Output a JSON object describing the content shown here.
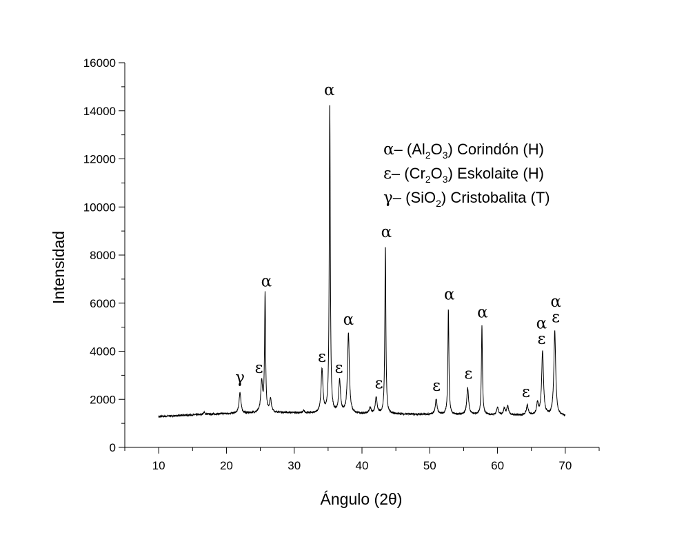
{
  "chart_data": {
    "type": "line",
    "xlabel": "Ángulo (2θ)",
    "ylabel": "Intensidad",
    "xlim": [
      5,
      75
    ],
    "ylim": [
      0,
      16000
    ],
    "xticks": [
      10,
      20,
      30,
      40,
      50,
      60,
      70
    ],
    "yticks": [
      0,
      2000,
      4000,
      6000,
      8000,
      10000,
      12000,
      14000,
      16000
    ],
    "xtick_labels": [
      "10",
      "20",
      "30",
      "40",
      "50",
      "60",
      "70"
    ],
    "ytick_labels": [
      "0",
      "2000",
      "4000",
      "6000",
      "8000",
      "10000",
      "12000",
      "14000",
      "16000"
    ],
    "grid": false,
    "legend_placement": "top-right",
    "line_color": "#000000",
    "x_range": [
      10,
      70
    ],
    "baseline": [
      [
        10,
        1280
      ],
      [
        15,
        1350
      ],
      [
        20,
        1400
      ],
      [
        28,
        1450
      ],
      [
        35,
        1400
      ],
      [
        45,
        1380
      ],
      [
        55,
        1360
      ],
      [
        65,
        1330
      ],
      [
        70,
        1300
      ]
    ],
    "peaks": [
      {
        "x": 16.7,
        "y": 1450
      },
      {
        "x": 22.0,
        "y": 2290
      },
      {
        "x": 25.2,
        "y": 2700
      },
      {
        "x": 25.7,
        "y": 6340
      },
      {
        "x": 26.5,
        "y": 1980
      },
      {
        "x": 31.4,
        "y": 1500
      },
      {
        "x": 34.1,
        "y": 3210
      },
      {
        "x": 35.25,
        "y": 14300
      },
      {
        "x": 36.7,
        "y": 2750
      },
      {
        "x": 38.0,
        "y": 4730
      },
      {
        "x": 41.2,
        "y": 1650
      },
      {
        "x": 42.1,
        "y": 2060
      },
      {
        "x": 43.45,
        "y": 8370
      },
      {
        "x": 50.95,
        "y": 1980
      },
      {
        "x": 52.75,
        "y": 5760
      },
      {
        "x": 55.6,
        "y": 2460
      },
      {
        "x": 57.7,
        "y": 5050
      },
      {
        "x": 60.0,
        "y": 1650
      },
      {
        "x": 61.0,
        "y": 1600
      },
      {
        "x": 61.5,
        "y": 1700
      },
      {
        "x": 64.4,
        "y": 1750
      },
      {
        "x": 65.9,
        "y": 1800
      },
      {
        "x": 66.65,
        "y": 3990
      },
      {
        "x": 68.45,
        "y": 4820
      }
    ],
    "annotations": [
      {
        "text": "γ",
        "x": 22.0,
        "y": 2700
      },
      {
        "text": "ε",
        "x": 24.8,
        "y": 3100
      },
      {
        "text": "α",
        "x": 25.9,
        "y": 6700
      },
      {
        "text": "ε",
        "x": 34.1,
        "y": 3550
      },
      {
        "text": "α",
        "x": 35.2,
        "y": 14650
      },
      {
        "text": "ε",
        "x": 36.6,
        "y": 3100
      },
      {
        "text": "α",
        "x": 38.0,
        "y": 5100
      },
      {
        "text": "ε",
        "x": 42.5,
        "y": 2450
      },
      {
        "text": "α",
        "x": 43.6,
        "y": 8750
      },
      {
        "text": "ε",
        "x": 51.0,
        "y": 2350
      },
      {
        "text": "α",
        "x": 52.9,
        "y": 6150
      },
      {
        "text": "ε",
        "x": 55.7,
        "y": 2850
      },
      {
        "text": "α",
        "x": 57.8,
        "y": 5400
      },
      {
        "text": "ε",
        "x": 64.2,
        "y": 2100
      },
      {
        "text": "ε",
        "x": 66.5,
        "y": 4300
      },
      {
        "text": "α",
        "x": 66.5,
        "y": 4950
      },
      {
        "text": "ε",
        "x": 68.6,
        "y": 5200
      },
      {
        "text": "α",
        "x": 68.6,
        "y": 5850
      }
    ],
    "legend": [
      {
        "symbol": "α",
        "dash": "–",
        "formula_pre": "(Al",
        "sub1": "2",
        "mid": "O",
        "sub2": "3",
        "formula_post": ")",
        "name": "Corindón (H)"
      },
      {
        "symbol": "ε",
        "dash": "–",
        "formula_pre": "(Cr",
        "sub1": "2",
        "mid": "O",
        "sub2": "3",
        "formula_post": ")",
        "name": "Eskolaite (H)"
      },
      {
        "symbol": "γ",
        "dash": "–",
        "formula_pre": "(SiO",
        "sub1": "2",
        "mid": "",
        "sub2": "",
        "formula_post": ")",
        "name": "Cristobalita (T)"
      }
    ]
  }
}
